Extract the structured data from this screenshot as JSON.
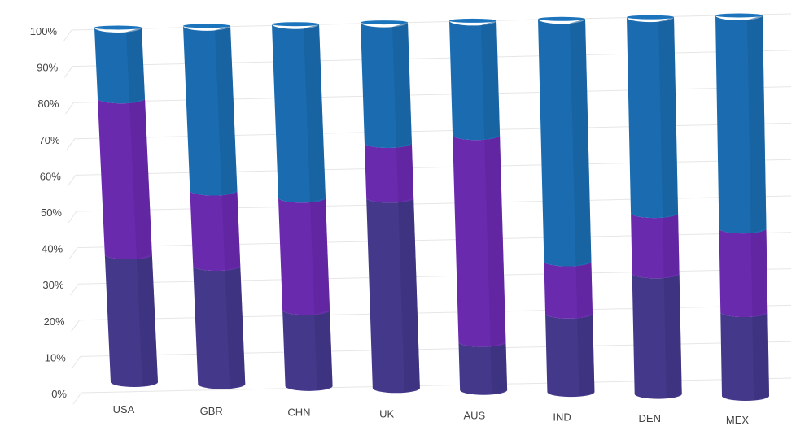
{
  "chart_data": {
    "type": "bar",
    "stacked": "percent",
    "style": "3d-cylinder",
    "categories": [
      "USA",
      "GBR",
      "CHN",
      "UK",
      "AUS",
      "IND",
      "DEN",
      "MEX"
    ],
    "series": [
      {
        "color": "#433889",
        "values": [
          36,
          33,
          21,
          52,
          13,
          21,
          32,
          22
        ]
      },
      {
        "color": "#6a2aae",
        "values": [
          44,
          21,
          31,
          15,
          56,
          14,
          16,
          22
        ]
      },
      {
        "color": "#1a6baf",
        "values": [
          20,
          46,
          48,
          33,
          31,
          65,
          52,
          56
        ]
      }
    ],
    "yticks": [
      "0%",
      "10%",
      "20%",
      "30%",
      "40%",
      "50%",
      "60%",
      "70%",
      "80%",
      "90%",
      "100%"
    ],
    "ylim": [
      0,
      100
    ],
    "grid": true,
    "legend": "none"
  }
}
